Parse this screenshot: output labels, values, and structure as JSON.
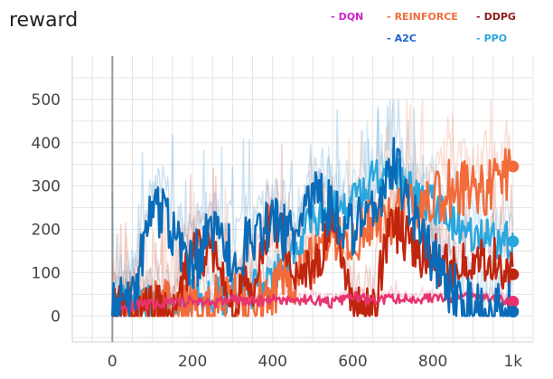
{
  "chart_data": {
    "type": "line",
    "title": "reward",
    "xlabel": "",
    "ylabel": "",
    "xlim": [
      -100,
      1050
    ],
    "ylim": [
      -60,
      600
    ],
    "x_ticks": [
      0,
      200,
      400,
      600,
      800,
      1000
    ],
    "x_tick_labels": [
      "0",
      "200",
      "400",
      "600",
      "800",
      "1k"
    ],
    "y_ticks": [
      0,
      100,
      200,
      300,
      400,
      500
    ],
    "y_tick_labels": [
      "0",
      "100",
      "200",
      "300",
      "400",
      "500"
    ],
    "grid": true,
    "legend_position": "top-right",
    "series": [
      {
        "name": "DQN",
        "color": "#e8336f",
        "legend_color": "#cc22cc",
        "x": [
          0,
          50,
          100,
          150,
          200,
          250,
          300,
          350,
          400,
          450,
          500,
          550,
          600,
          650,
          700,
          750,
          800,
          850,
          900,
          950,
          1000
        ],
        "y": [
          20,
          22,
          28,
          30,
          35,
          30,
          38,
          32,
          40,
          35,
          38,
          30,
          45,
          35,
          40,
          38,
          42,
          40,
          45,
          38,
          33
        ],
        "end_value": 33
      },
      {
        "name": "REINFORCE",
        "color": "#f26b3a",
        "legend_color": "#f26b3a",
        "x": [
          0,
          50,
          100,
          150,
          200,
          250,
          300,
          350,
          400,
          450,
          500,
          550,
          600,
          650,
          700,
          750,
          800,
          850,
          900,
          950,
          1000
        ],
        "y": [
          15,
          18,
          20,
          22,
          25,
          30,
          35,
          40,
          60,
          80,
          120,
          160,
          190,
          220,
          230,
          250,
          270,
          300,
          290,
          310,
          345
        ],
        "end_value": 345
      },
      {
        "name": "A2C",
        "color": "#0a6cb8",
        "legend_color": "#1f5fd6",
        "x": [
          0,
          50,
          100,
          150,
          200,
          250,
          300,
          350,
          400,
          450,
          500,
          550,
          600,
          650,
          700,
          750,
          800,
          850,
          900,
          950,
          1000
        ],
        "y": [
          20,
          30,
          260,
          190,
          120,
          190,
          140,
          170,
          220,
          170,
          300,
          230,
          200,
          250,
          360,
          240,
          130,
          60,
          12,
          10,
          10
        ],
        "end_value": 10
      },
      {
        "name": "DDPG",
        "color": "#c0250e",
        "legend_color": "#8b1a1a",
        "x": [
          0,
          50,
          100,
          150,
          200,
          250,
          300,
          350,
          400,
          450,
          500,
          550,
          600,
          650,
          700,
          750,
          800,
          850,
          900,
          950,
          1000
        ],
        "y": [
          15,
          15,
          12,
          12,
          140,
          150,
          30,
          80,
          240,
          120,
          100,
          200,
          30,
          20,
          220,
          150,
          140,
          100,
          120,
          140,
          96
        ],
        "end_value": 96
      },
      {
        "name": "PPO",
        "color": "#2aa7de",
        "legend_color": "#2aa7de",
        "x": [
          0,
          50,
          100,
          150,
          200,
          250,
          300,
          350,
          400,
          450,
          500,
          550,
          600,
          650,
          700,
          750,
          800,
          850,
          900,
          950,
          1000
        ],
        "y": [
          25,
          28,
          30,
          35,
          40,
          45,
          50,
          60,
          80,
          150,
          220,
          250,
          260,
          320,
          340,
          280,
          260,
          220,
          190,
          175,
          172
        ],
        "end_value": 172
      }
    ]
  }
}
